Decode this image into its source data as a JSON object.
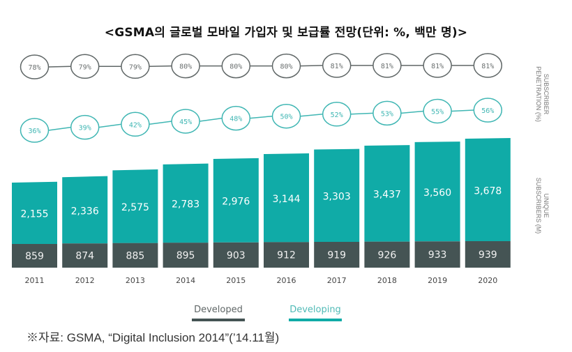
{
  "title": "<GSMA의 글로벌 모바일 가입자 및 보급률 전망(단위: %, 백만 명)>",
  "source": "※자료: GSMA, “Digital Inclusion 2014”(’14.11월)",
  "colors": {
    "developed": "#455454",
    "developing": "#10ABA7",
    "developed_line": "#5f6666",
    "developing_line": "#3fb6b3"
  },
  "chart_data": {
    "type": "bar",
    "title": "<GSMA의 글로벌 모바일 가입자 및 보급률 전망(단위: %, 백만 명)>",
    "categories": [
      "2011",
      "2012",
      "2013",
      "2014",
      "2015",
      "2016",
      "2017",
      "2018",
      "2019",
      "2020"
    ],
    "stacked": true,
    "series": [
      {
        "name": "Developed",
        "values": [
          859,
          874,
          885,
          895,
          903,
          912,
          919,
          926,
          933,
          939
        ],
        "labels": [
          "859",
          "874",
          "885",
          "895",
          "903",
          "912",
          "919",
          "926",
          "933",
          "939"
        ]
      },
      {
        "name": "Developing",
        "values": [
          2155,
          2336,
          2575,
          2783,
          2976,
          3144,
          3303,
          3437,
          3560,
          3678
        ],
        "labels": [
          "2,155",
          "2,336",
          "2,575",
          "2,783",
          "2,976",
          "3,144",
          "3,303",
          "3,437",
          "3,560",
          "3,678"
        ]
      }
    ],
    "penetration": [
      {
        "name": "Developed",
        "values": [
          78,
          79,
          79,
          80,
          80,
          80,
          81,
          81,
          81,
          81
        ],
        "labels": [
          "78%",
          "79%",
          "79%",
          "80%",
          "80%",
          "80%",
          "81%",
          "81%",
          "81%",
          "81%"
        ]
      },
      {
        "name": "Developing",
        "values": [
          36,
          39,
          42,
          45,
          48,
          50,
          52,
          53,
          55,
          56
        ],
        "labels": [
          "36%",
          "39%",
          "42%",
          "45%",
          "48%",
          "50%",
          "52%",
          "53%",
          "55%",
          "56%"
        ]
      }
    ],
    "side_labels": {
      "penetration": [
        "SUBSCRIBER",
        "PENETRATION (%)"
      ],
      "subscribers": [
        "UNIQUE",
        "SUBSCRIBERS (M)"
      ]
    },
    "legend": [
      "Developed",
      "Developing"
    ],
    "legend_position": "bottom",
    "grid": false
  }
}
